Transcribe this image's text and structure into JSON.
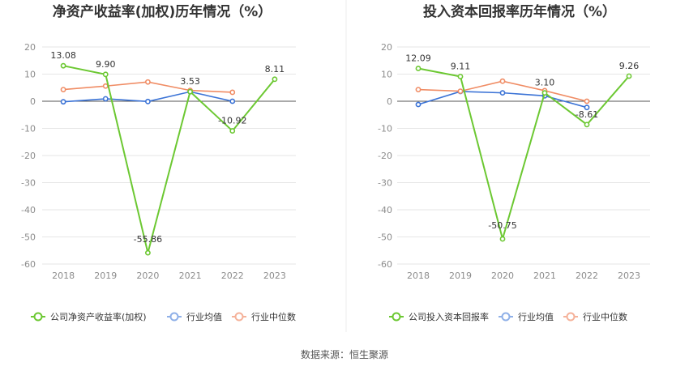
{
  "source_label": "数据来源：恒生聚源",
  "colors": {
    "company": "#6cc832",
    "avg": "#3b73d6",
    "median": "#f08c64"
  },
  "chart_data": [
    {
      "type": "line",
      "title": "净资产收益率(加权)历年情况（%）",
      "categories": [
        "2018",
        "2019",
        "2020",
        "2021",
        "2022",
        "2023"
      ],
      "ylim": [
        -60,
        20
      ],
      "yticks": [
        "20",
        "10",
        "0",
        "-10",
        "-20",
        "-30",
        "-40",
        "-50",
        "-60"
      ],
      "series": [
        {
          "name": "公司净资产收益率(加权)",
          "values": [
            13.08,
            9.9,
            -55.86,
            3.53,
            -10.92,
            8.11
          ],
          "labels": [
            "13.08",
            "9.90",
            "-55.86",
            "3.53",
            "-10.92",
            "8.11"
          ]
        },
        {
          "name": "行业均值",
          "values": [
            -0.2,
            0.9,
            -0.1,
            3.5,
            0.0,
            null
          ]
        },
        {
          "name": "行业中位数",
          "values": [
            4.3,
            5.6,
            7.1,
            4.0,
            3.3,
            null
          ]
        }
      ]
    },
    {
      "type": "line",
      "title": "投入资本回报率历年情况（%）",
      "categories": [
        "2018",
        "2019",
        "2020",
        "2021",
        "2022",
        "2023"
      ],
      "ylim": [
        -60,
        20
      ],
      "yticks": [
        "20",
        "10",
        "0",
        "-10",
        "-20",
        "-30",
        "-40",
        "-50",
        "-60"
      ],
      "series": [
        {
          "name": "公司投入资本回报率",
          "values": [
            12.09,
            9.11,
            -50.75,
            3.1,
            -8.61,
            9.26
          ],
          "labels": [
            "12.09",
            "9.11",
            "-50.75",
            "3.10",
            "-8.61",
            "9.26"
          ]
        },
        {
          "name": "行业均值",
          "values": [
            -1.2,
            3.6,
            3.1,
            2.0,
            -2.3,
            null
          ]
        },
        {
          "name": "行业中位数",
          "values": [
            4.3,
            3.7,
            7.4,
            3.9,
            0.0,
            null
          ]
        }
      ]
    }
  ]
}
